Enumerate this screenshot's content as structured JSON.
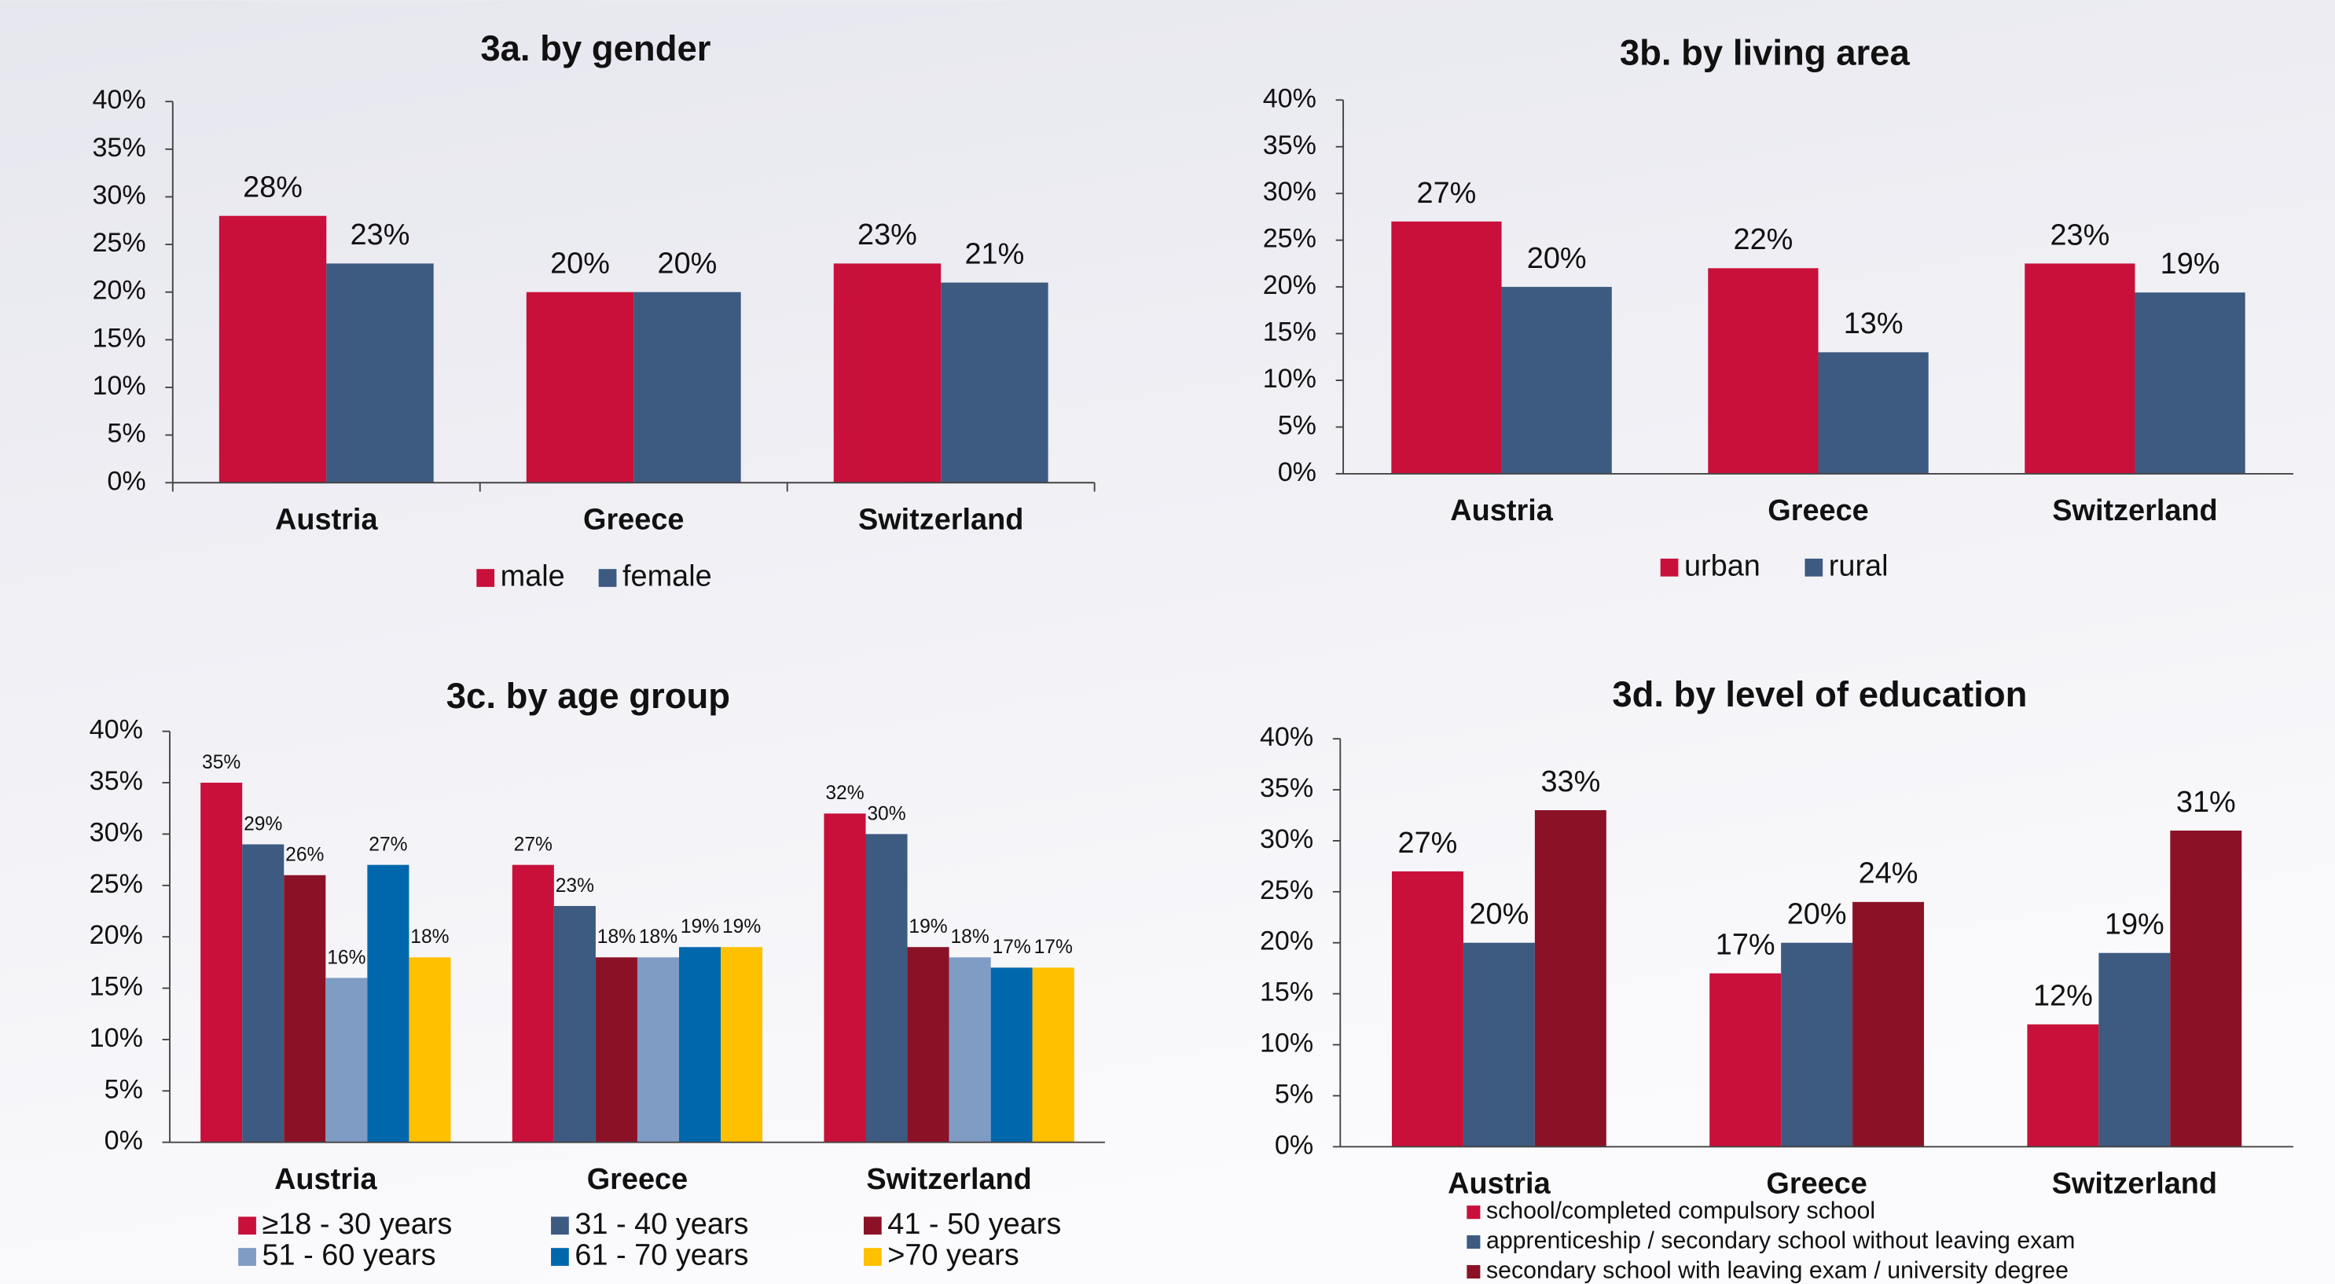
{
  "chart_data": [
    {
      "type": "bar",
      "title": "3a. by gender",
      "categories": [
        "Austria",
        "Greece",
        "Switzerland"
      ],
      "series": [
        {
          "name": "male",
          "color": "#c8103a",
          "values": [
            28,
            20,
            23
          ],
          "value_labels": [
            "28%",
            "20%",
            "23%"
          ]
        },
        {
          "name": "female",
          "color": "#3d5a80",
          "values": [
            23,
            20,
            21
          ],
          "value_labels": [
            "23%",
            "20%",
            "21%"
          ]
        }
      ],
      "ylim": [
        0,
        40
      ],
      "yticks": [
        {
          "value": 0,
          "label": "0%"
        },
        {
          "value": 5,
          "label": "5%"
        },
        {
          "value": 10,
          "label": "10%"
        },
        {
          "value": 15,
          "label": "15%"
        },
        {
          "value": 20,
          "label": "20%"
        },
        {
          "value": 25,
          "label": "25%"
        },
        {
          "value": 30,
          "label": "30%"
        },
        {
          "value": 35,
          "label": "35%"
        },
        {
          "value": 40,
          "label": "40%"
        }
      ]
    },
    {
      "type": "bar",
      "title": "3b. by living area",
      "categories": [
        "Austria",
        "Greece",
        "Switzerland"
      ],
      "series": [
        {
          "name": "urban",
          "color": "#c8103a",
          "values": [
            27,
            22,
            22.5
          ],
          "value_labels": [
            "27%",
            "22%",
            "23%"
          ]
        },
        {
          "name": "rural",
          "color": "#3d5a80",
          "values": [
            20,
            13,
            19.4
          ],
          "value_labels": [
            "20%",
            "13%",
            "19%"
          ]
        }
      ],
      "ylim": [
        0,
        40
      ],
      "yticks": [
        {
          "value": 0,
          "label": "0%"
        },
        {
          "value": 5,
          "label": "5%"
        },
        {
          "value": 10,
          "label": "10%"
        },
        {
          "value": 15,
          "label": "15%"
        },
        {
          "value": 20,
          "label": "20%"
        },
        {
          "value": 25,
          "label": "25%"
        },
        {
          "value": 30,
          "label": "30%"
        },
        {
          "value": 35,
          "label": "35%"
        },
        {
          "value": 40,
          "label": "40%"
        }
      ]
    },
    {
      "type": "bar",
      "title": "3c. by age group",
      "categories": [
        "Austria",
        "Greece",
        "Switzerland"
      ],
      "series": [
        {
          "name": "≥18 - 30 years",
          "color": "#c8103a",
          "values": [
            35,
            27,
            32
          ],
          "value_labels": [
            "35%",
            "27%",
            "32%"
          ]
        },
        {
          "name": "31 - 40 years",
          "color": "#3d5a80",
          "values": [
            29,
            23,
            30
          ],
          "value_labels": [
            "29%",
            "23%",
            "30%"
          ]
        },
        {
          "name": "41 - 50 years",
          "color": "#8b1226",
          "values": [
            26,
            18,
            19
          ],
          "value_labels": [
            "26%",
            "18%",
            "19%"
          ]
        },
        {
          "name": "51 - 60 years",
          "color": "#7f9cc4",
          "values": [
            16,
            18,
            18
          ],
          "value_labels": [
            "16%",
            "18%",
            "18%"
          ]
        },
        {
          "name": "61 - 70 years",
          "color": "#0067ad",
          "values": [
            27,
            19,
            17
          ],
          "value_labels": [
            "27%",
            "19%",
            "17%"
          ]
        },
        {
          "name": ">70 years",
          "color": "#ffc000",
          "values": [
            18,
            19,
            17
          ],
          "value_labels": [
            "18%",
            "19%",
            "17%"
          ]
        }
      ],
      "ylim": [
        0,
        40
      ],
      "yticks": [
        {
          "value": 0,
          "label": "0%"
        },
        {
          "value": 5,
          "label": "5%"
        },
        {
          "value": 10,
          "label": "10%"
        },
        {
          "value": 15,
          "label": "15%"
        },
        {
          "value": 20,
          "label": "20%"
        },
        {
          "value": 25,
          "label": "25%"
        },
        {
          "value": 30,
          "label": "30%"
        },
        {
          "value": 35,
          "label": "35%"
        },
        {
          "value": 40,
          "label": "40%"
        }
      ]
    },
    {
      "type": "bar",
      "title": "3d. by level of education",
      "categories": [
        "Austria",
        "Greece",
        "Switzerland"
      ],
      "series": [
        {
          "name": "school/completed compulsory school",
          "color": "#c8103a",
          "values": [
            27,
            17,
            12
          ],
          "value_labels": [
            "27%",
            "17%",
            "12%"
          ]
        },
        {
          "name": "apprenticeship / secondary school without leaving exam",
          "color": "#3d5a80",
          "values": [
            20,
            20,
            19
          ],
          "value_labels": [
            "20%",
            "20%",
            "19%"
          ]
        },
        {
          "name": "secondary school with leaving exam / university degree",
          "color": "#8b1226",
          "values": [
            33,
            24,
            31
          ],
          "value_labels": [
            "33%",
            "24%",
            "31%"
          ]
        }
      ],
      "ylim": [
        0,
        40
      ],
      "yticks": [
        {
          "value": 0,
          "label": "0%"
        },
        {
          "value": 5,
          "label": "5%"
        },
        {
          "value": 10,
          "label": "10%"
        },
        {
          "value": 15,
          "label": "15%"
        },
        {
          "value": 20,
          "label": "20%"
        },
        {
          "value": 25,
          "label": "25%"
        },
        {
          "value": 30,
          "label": "30%"
        },
        {
          "value": 35,
          "label": "35%"
        },
        {
          "value": 40,
          "label": "40%"
        }
      ]
    }
  ]
}
